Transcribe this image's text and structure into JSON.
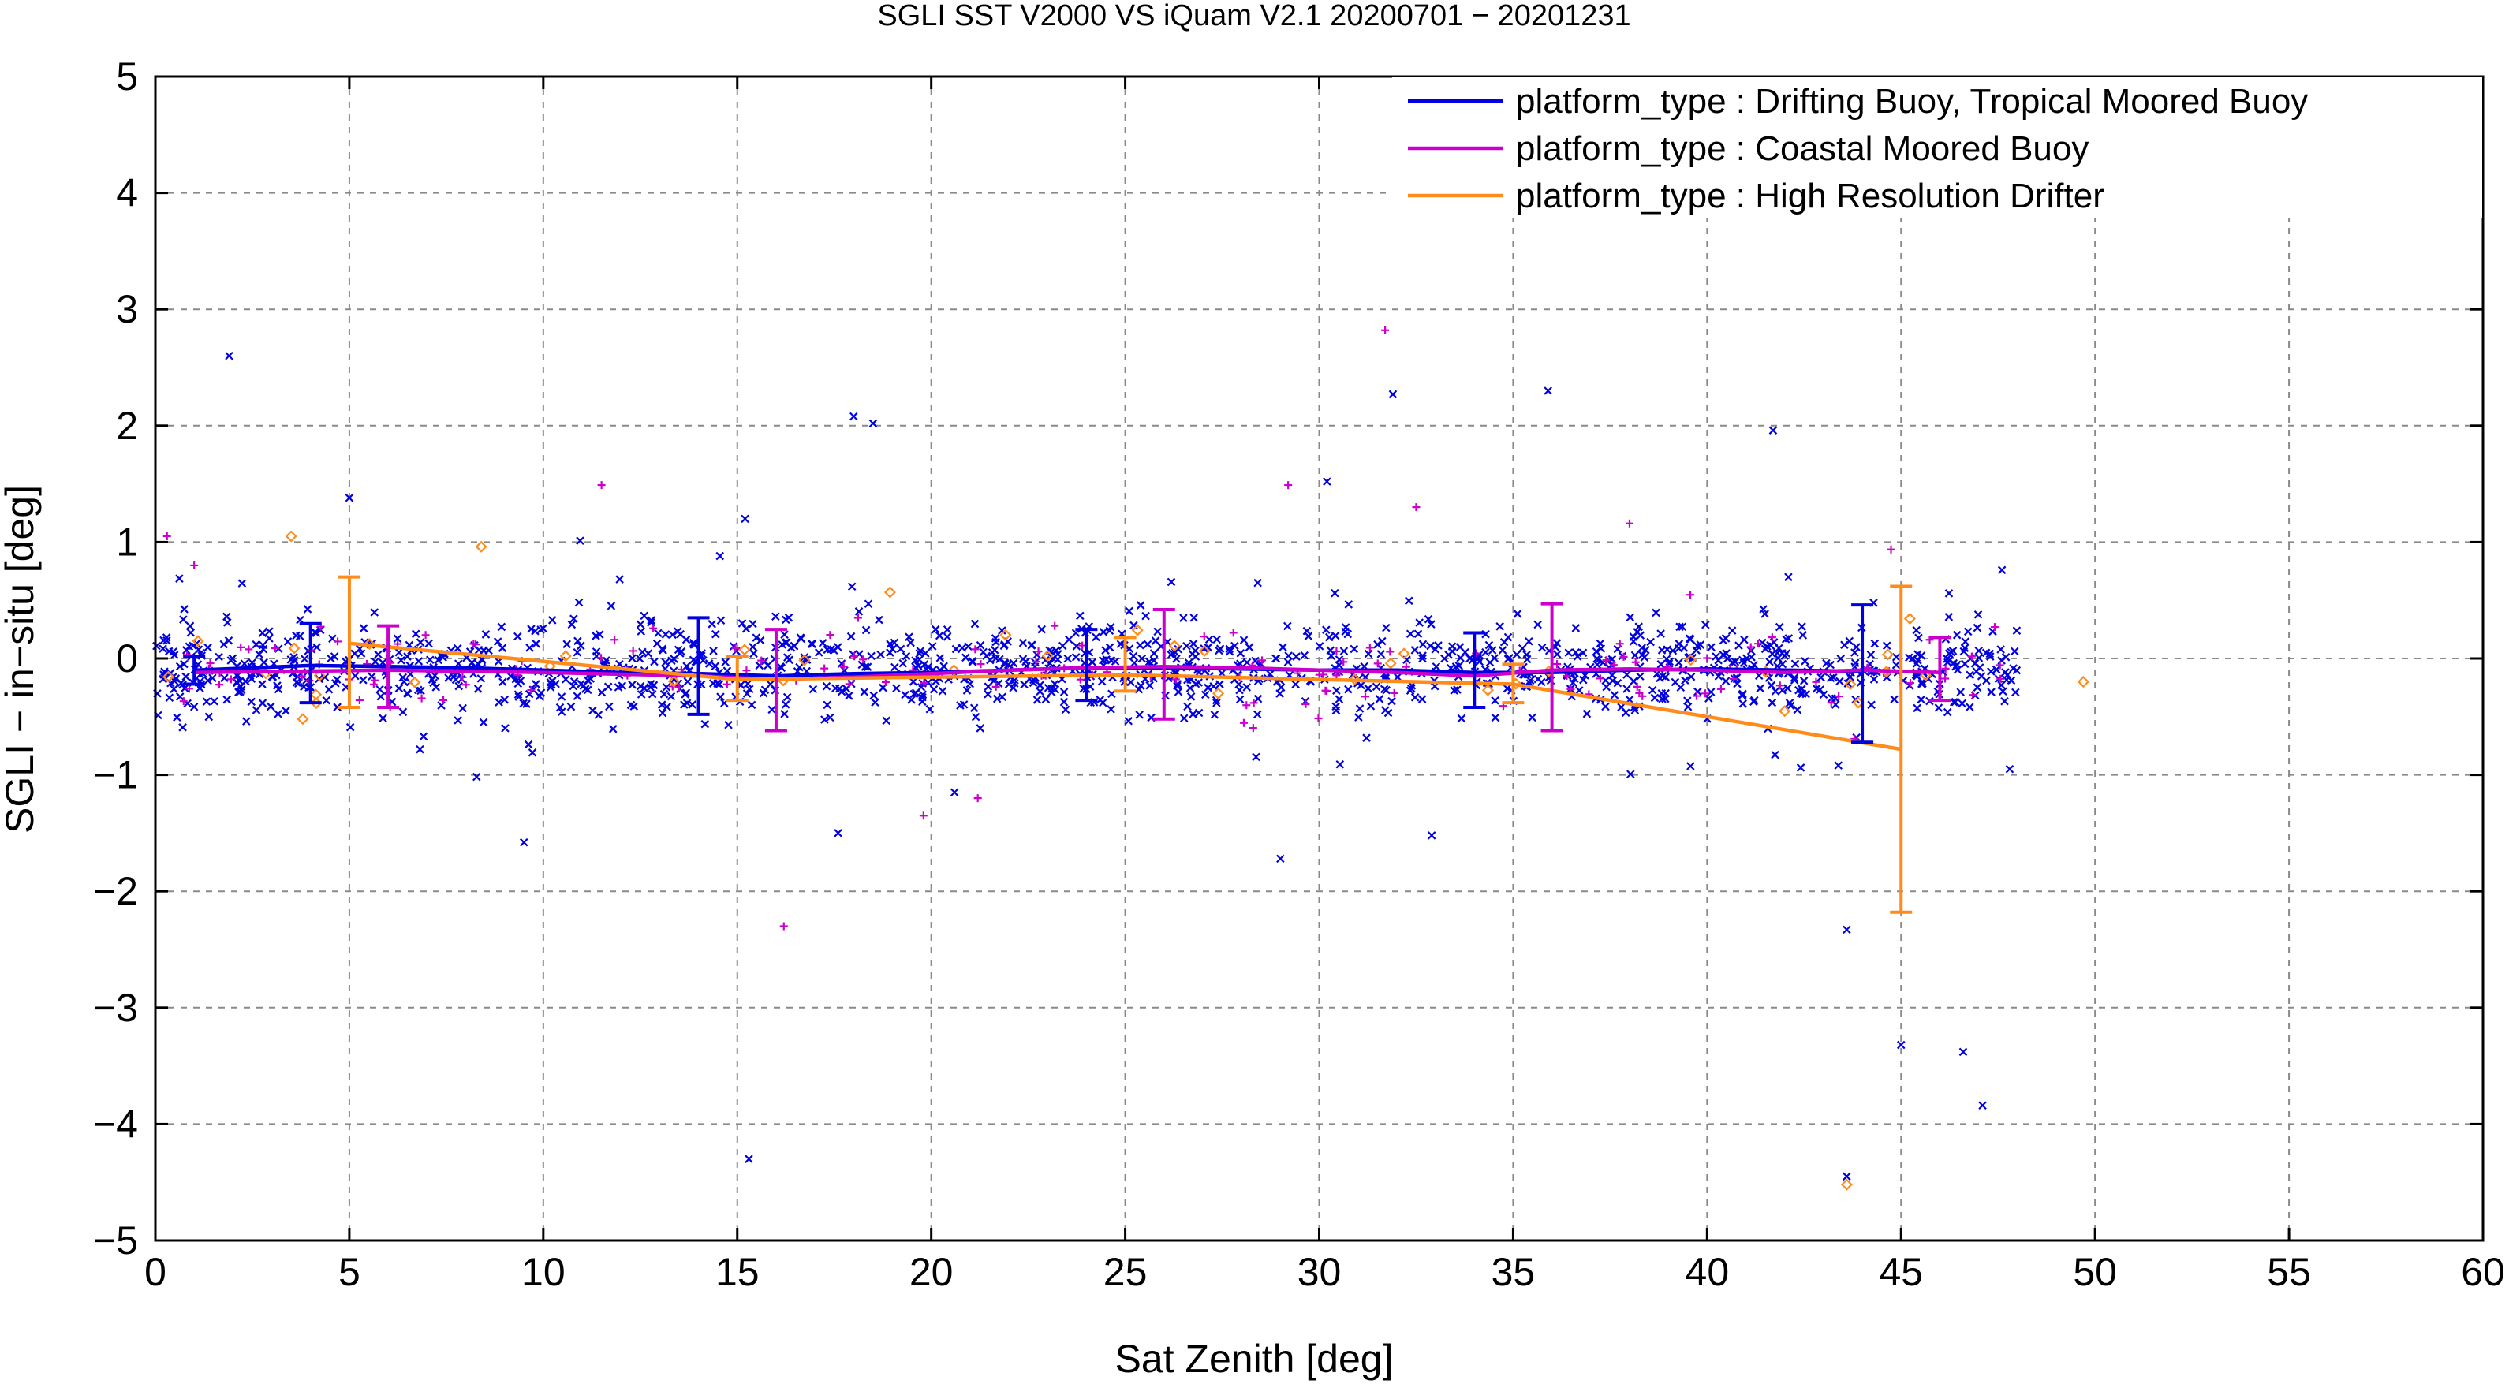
{
  "chart_data": {
    "type": "scatter",
    "title": "SGLI SST V2000 VS iQuam V2.1 20200701 − 20201231",
    "xlabel": "Sat Zenith [deg]",
    "ylabel": "SGLI − in−situ [deg]",
    "xlim": [
      0,
      60
    ],
    "ylim": [
      -5,
      5
    ],
    "x_ticks": [
      0,
      5,
      10,
      15,
      20,
      25,
      30,
      35,
      40,
      45,
      50,
      55,
      60
    ],
    "x_tick_labels": [
      "0",
      "5",
      "10",
      "15",
      "20",
      "25",
      "30",
      "35",
      "40",
      "45",
      "50",
      "55",
      "60"
    ],
    "y_ticks": [
      -5,
      -4,
      -3,
      -2,
      -1,
      0,
      1,
      2,
      3,
      4,
      5
    ],
    "y_tick_labels": [
      "−5",
      "−4",
      "−3",
      "−2",
      "−1",
      "0",
      "1",
      "2",
      "3",
      "4",
      "5"
    ],
    "grid": true,
    "legend_position": "top-right",
    "series": [
      {
        "name": "platform_type : Drifting Buoy, Tropical Moored Buoy",
        "color": "#0000e0",
        "marker": "x",
        "mean_line": {
          "x": [
            1,
            4,
            6,
            8,
            10,
            12,
            14,
            16,
            18,
            20,
            22,
            24,
            26,
            28,
            30,
            32,
            34,
            36,
            38,
            40,
            42,
            44
          ],
          "y": [
            -0.1,
            -0.06,
            -0.07,
            -0.08,
            -0.1,
            -0.12,
            -0.13,
            -0.15,
            -0.13,
            -0.12,
            -0.1,
            -0.08,
            -0.08,
            -0.09,
            -0.1,
            -0.1,
            -0.12,
            -0.12,
            -0.1,
            -0.09,
            -0.1,
            -0.11
          ]
        },
        "error_bars": [
          {
            "x": 1,
            "low": -0.22,
            "high": 0.02
          },
          {
            "x": 4,
            "low": -0.38,
            "high": 0.3
          },
          {
            "x": 14,
            "low": -0.48,
            "high": 0.35
          },
          {
            "x": 24,
            "low": -0.36,
            "high": 0.25
          },
          {
            "x": 34,
            "low": -0.42,
            "high": 0.22
          },
          {
            "x": 44,
            "low": -0.72,
            "high": 0.46
          }
        ],
        "outliers": [
          {
            "x": 1.9,
            "y": 2.6
          },
          {
            "x": 5.0,
            "y": 1.38
          },
          {
            "x": 9.5,
            "y": -1.58
          },
          {
            "x": 15.2,
            "y": 1.2
          },
          {
            "x": 15.3,
            "y": -4.3
          },
          {
            "x": 17.6,
            "y": -1.5
          },
          {
            "x": 18.0,
            "y": 2.08
          },
          {
            "x": 18.5,
            "y": 2.02
          },
          {
            "x": 20.6,
            "y": -1.15
          },
          {
            "x": 29.0,
            "y": -1.72
          },
          {
            "x": 30.2,
            "y": 1.52
          },
          {
            "x": 31.9,
            "y": 2.27
          },
          {
            "x": 32.9,
            "y": -1.52
          },
          {
            "x": 35.9,
            "y": 2.3
          },
          {
            "x": 41.7,
            "y": 1.96
          },
          {
            "x": 43.6,
            "y": -2.33
          },
          {
            "x": 43.6,
            "y": -4.45
          },
          {
            "x": 45.0,
            "y": -3.32
          },
          {
            "x": 46.6,
            "y": -3.38
          },
          {
            "x": 47.1,
            "y": -3.84
          },
          {
            "x": 47.6,
            "y": 0.76
          },
          {
            "x": 47.8,
            "y": -0.95
          }
        ]
      },
      {
        "name": "platform_type : Coastal Moored Buoy",
        "color": "#cc00cc",
        "marker": "+",
        "mean_line": {
          "x": [
            1,
            6,
            10,
            14,
            16,
            18,
            20,
            22,
            24,
            26,
            28,
            30,
            32,
            34,
            36,
            38,
            40,
            42,
            44,
            46
          ],
          "y": [
            -0.12,
            -0.1,
            -0.12,
            -0.15,
            -0.18,
            -0.16,
            -0.13,
            -0.1,
            -0.08,
            -0.07,
            -0.08,
            -0.1,
            -0.12,
            -0.15,
            -0.1,
            -0.09,
            -0.1,
            -0.12,
            -0.1,
            -0.12
          ]
        },
        "error_bars": [
          {
            "x": 6,
            "low": -0.42,
            "high": 0.28
          },
          {
            "x": 16,
            "low": -0.62,
            "high": 0.25
          },
          {
            "x": 26,
            "low": -0.52,
            "high": 0.42
          },
          {
            "x": 36,
            "low": -0.62,
            "high": 0.47
          },
          {
            "x": 46,
            "low": -0.36,
            "high": 0.18
          }
        ],
        "outliers": [
          {
            "x": 0.3,
            "y": 1.05
          },
          {
            "x": 1.0,
            "y": 0.8
          },
          {
            "x": 11.5,
            "y": 1.49
          },
          {
            "x": 16.2,
            "y": -2.3
          },
          {
            "x": 19.8,
            "y": -1.35
          },
          {
            "x": 21.2,
            "y": -1.2
          },
          {
            "x": 29.2,
            "y": 1.49
          },
          {
            "x": 31.7,
            "y": 2.82
          },
          {
            "x": 32.5,
            "y": 1.3
          },
          {
            "x": 38.0,
            "y": 1.16
          },
          {
            "x": 43.2,
            "y": -0.38
          }
        ]
      },
      {
        "name": "platform_type : High Resolution Drifter",
        "color": "#ff8c1a",
        "marker": "diamond",
        "mean_line": {
          "x": [
            5,
            15,
            25,
            35,
            45
          ],
          "y": [
            0.13,
            -0.18,
            -0.14,
            -0.22,
            -0.78
          ]
        },
        "error_bars": [
          {
            "x": 5,
            "low": -0.42,
            "high": 0.7
          },
          {
            "x": 15,
            "low": -0.36,
            "high": 0.02
          },
          {
            "x": 25,
            "low": -0.28,
            "high": 0.18
          },
          {
            "x": 35,
            "low": -0.38,
            "high": -0.05
          },
          {
            "x": 45,
            "low": -2.18,
            "high": 0.62
          }
        ],
        "outliers": [
          {
            "x": 1.1,
            "y": 0.15
          },
          {
            "x": 3.5,
            "y": 1.05
          },
          {
            "x": 3.8,
            "y": -0.52
          },
          {
            "x": 8.4,
            "y": 0.96
          },
          {
            "x": 27.4,
            "y": -0.3
          },
          {
            "x": 43.6,
            "y": -4.52
          },
          {
            "x": 43.9,
            "y": -0.38
          },
          {
            "x": 49.7,
            "y": -0.2
          }
        ]
      }
    ],
    "dense_cluster": {
      "x_range": [
        0,
        48
      ],
      "y_center": -0.08,
      "y_spread": 0.32,
      "note": ""
    }
  }
}
